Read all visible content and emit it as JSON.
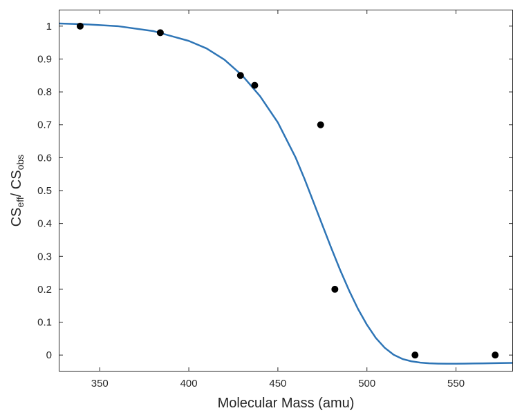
{
  "chart_data": {
    "type": "scatter",
    "title": "",
    "xlabel": "Molecular Mass (amu)",
    "ylabel": {
      "parts": [
        {
          "text": "CS",
          "sub": false
        },
        {
          "text": "eff",
          "sub": true
        },
        {
          "text": "/ CS",
          "sub": false
        },
        {
          "text": "obs",
          "sub": true
        }
      ]
    },
    "xlim": [
      327,
      582
    ],
    "ylim": [
      -0.05,
      1.05
    ],
    "x_ticks": [
      350,
      400,
      450,
      500,
      550
    ],
    "x_tick_labels": [
      "350",
      "400",
      "450",
      "500",
      "550"
    ],
    "y_ticks": [
      0,
      0.1,
      0.2,
      0.3,
      0.4,
      0.5,
      0.6,
      0.7,
      0.8,
      0.9,
      1
    ],
    "y_tick_labels": [
      "0",
      "0.1",
      "0.2",
      "0.3",
      "0.4",
      "0.5",
      "0.6",
      "0.7",
      "0.8",
      "0.9",
      "1"
    ],
    "grid": false,
    "series": [
      {
        "kind": "points",
        "color": "#000000",
        "x": [
          339,
          384,
          429,
          437,
          474,
          482,
          527,
          572
        ],
        "y": [
          1.0,
          0.98,
          0.85,
          0.82,
          0.7,
          0.2,
          0.0,
          0.0
        ]
      },
      {
        "kind": "fit-curve",
        "color": "#2e75b6",
        "x": [
          327,
          340,
          360,
          380,
          400,
          410,
          420,
          430,
          440,
          450,
          460,
          465,
          470,
          475,
          480,
          485,
          490,
          495,
          500,
          505,
          510,
          515,
          520,
          525,
          530,
          535,
          540,
          545,
          550,
          555,
          560,
          565,
          570,
          575,
          582
        ],
        "y": [
          1.008,
          1.006,
          1.0,
          0.985,
          0.955,
          0.932,
          0.898,
          0.85,
          0.787,
          0.707,
          0.6,
          0.535,
          0.465,
          0.395,
          0.325,
          0.258,
          0.196,
          0.14,
          0.092,
          0.052,
          0.022,
          0.001,
          -0.012,
          -0.019,
          -0.023,
          -0.025,
          -0.026,
          -0.0265,
          -0.0265,
          -0.0262,
          -0.0257,
          -0.0252,
          -0.0247,
          -0.0243,
          -0.0238
        ]
      }
    ]
  }
}
